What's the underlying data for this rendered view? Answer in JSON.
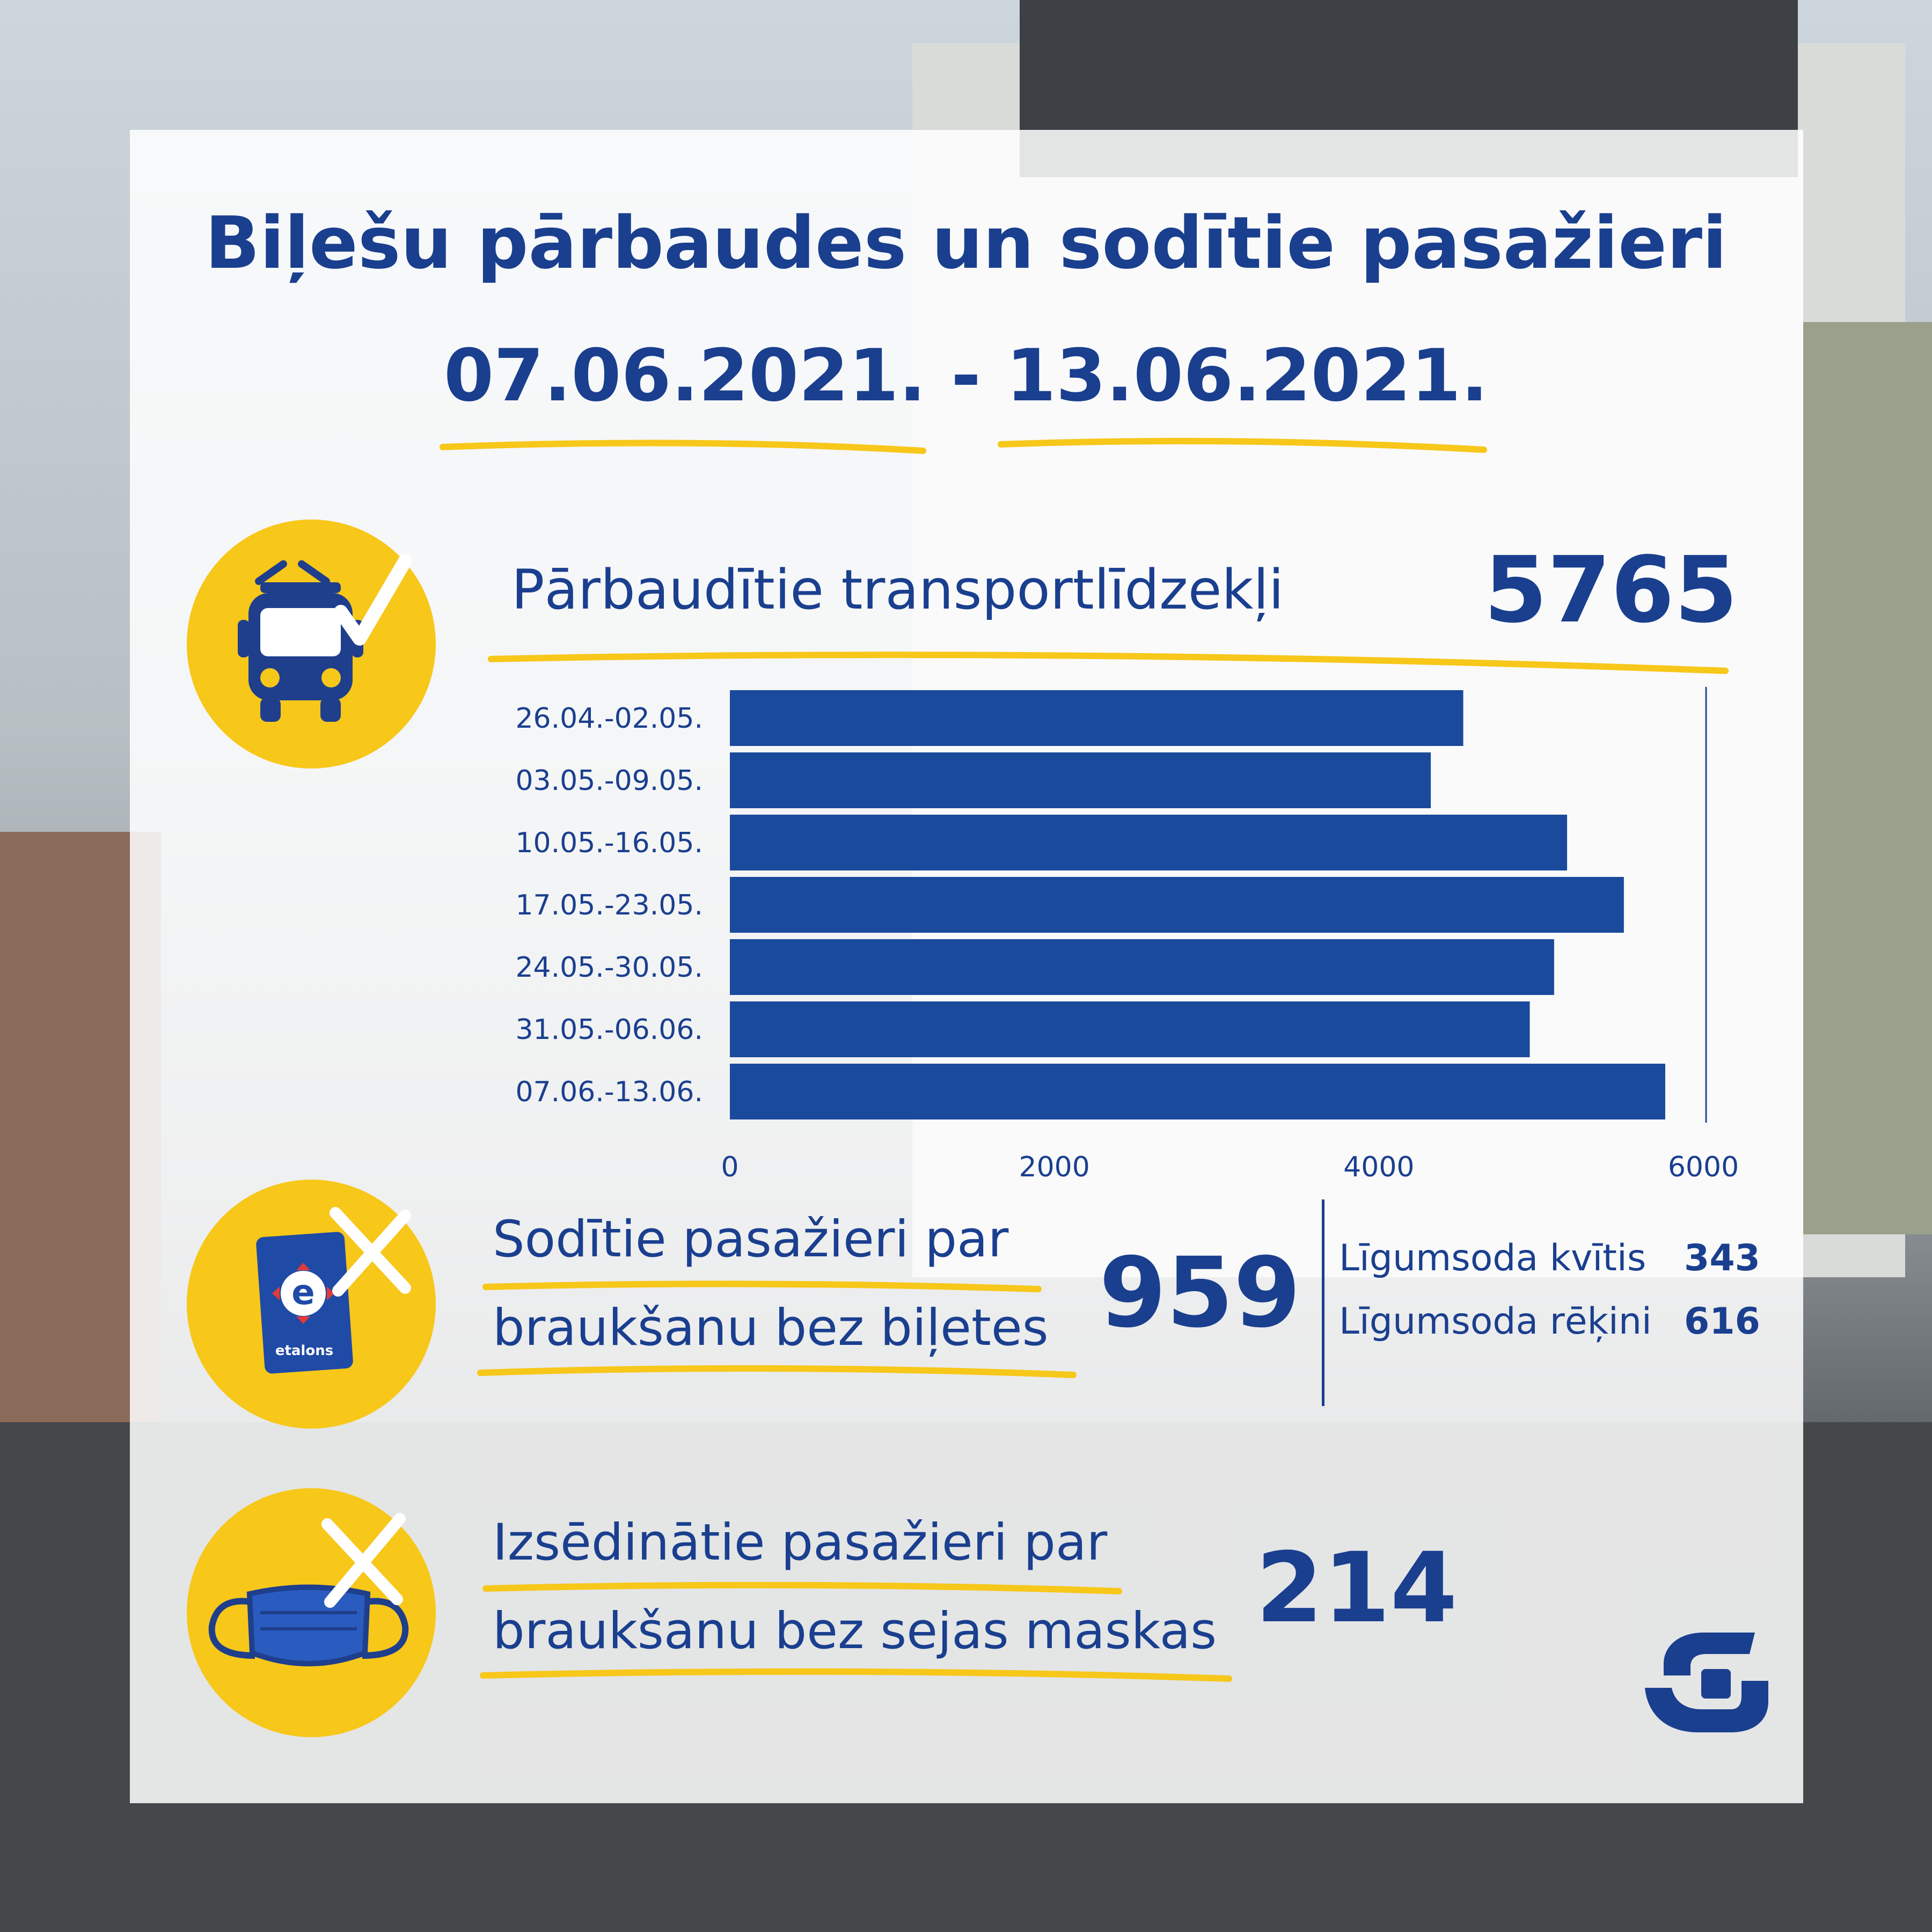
{
  "header": {
    "title": "Biļešu pārbaudes un sodītie pasažieri",
    "date_range": "07.06.2021. - 13.06.2021."
  },
  "vehicles": {
    "label": "Pārbaudītie transportlīdzekļi",
    "value": "5765",
    "icon": "trolleybus-check-icon"
  },
  "chart_data": {
    "type": "bar",
    "orientation": "horizontal",
    "categories": [
      "26.04.-02.05.",
      "03.05.-09.05.",
      "10.05.-16.05.",
      "17.05.-23.05.",
      "24.05.-30.05.",
      "31.05.-06.06.",
      "07.06.-13.06."
    ],
    "values": [
      4520,
      4320,
      5160,
      5510,
      5080,
      4930,
      5765
    ],
    "x_ticks": [
      "0",
      "2000",
      "4000",
      "6000"
    ],
    "xlim": [
      0,
      6000
    ],
    "bar_color": "#1a4a9c",
    "grid": false
  },
  "fined": {
    "label_line1": "Sodītie pasažieri par",
    "label_line2": "braukšanu bez biļetes",
    "value": "959",
    "icon": "etalons-card-cross-icon",
    "card_text": "etalons",
    "breakdown": [
      {
        "label": "Līgumsoda kvītis",
        "value": "343"
      },
      {
        "label": "Līgumsoda rēķini",
        "value": "616"
      }
    ]
  },
  "mask": {
    "label_line1": "Izsēdinātie pasažieri par",
    "label_line2": "braukšanu bez sejas maskas",
    "value": "214",
    "icon": "face-mask-cross-icon"
  },
  "logo": {
    "icon": "rigas-satiksme-logo-icon"
  },
  "colors": {
    "accent_blue": "#1a3f8f",
    "accent_yellow": "#f7c71a"
  }
}
